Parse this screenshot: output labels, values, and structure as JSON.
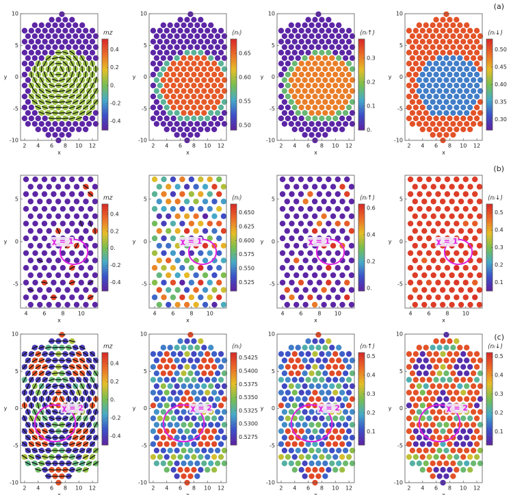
{
  "panel_labels": [
    "(a)",
    "(b)",
    "(c)"
  ],
  "chart_data": [
    {
      "type": "scatter",
      "x_label": "x",
      "y_label": "y",
      "xlim": [
        1.4,
        12.8
      ],
      "ylim": [
        -10,
        10
      ],
      "xticks": [
        2,
        4,
        6,
        8,
        10,
        12
      ],
      "yticks": [
        10,
        5,
        0,
        -5,
        -10
      ],
      "colorbar": {
        "label": "mz",
        "lim": [
          -0.5,
          0.52
        ],
        "ticks": [
          0.4,
          0.2,
          {
            "value": 0,
            "label": "0."
          },
          -0.2,
          -0.4
        ]
      }
    },
    {
      "type": "scatter",
      "x_label": "x",
      "y_label": "y",
      "xlim": [
        1.4,
        12.8
      ],
      "ylim": [
        -10,
        10
      ],
      "xticks": [
        2,
        4,
        6,
        8,
        10,
        12
      ],
      "yticks": [
        10,
        5,
        0,
        -5,
        -10
      ],
      "colorbar": {
        "label": "⟨nᵢ⟩",
        "lim": [
          0.49,
          0.68
        ],
        "ticks": [
          0.65,
          {
            "value": 0.6,
            "label": "0.60"
          },
          0.55,
          {
            "value": 0.5,
            "label": "0.50"
          }
        ]
      }
    },
    {
      "type": "scatter",
      "x_label": "x",
      "y_label": "y",
      "xlim": [
        1.4,
        12.8
      ],
      "ylim": [
        -10,
        10
      ],
      "xticks": [
        2,
        4,
        6,
        8,
        10,
        12
      ],
      "yticks": [
        10,
        5,
        0,
        -5,
        -10
      ],
      "colorbar": {
        "label": "⟨nᵢ↑⟩",
        "lim": [
          0,
          0.38
        ],
        "ticks": [
          0.3,
          0.2,
          0.1,
          {
            "value": 0,
            "label": "0."
          }
        ]
      }
    },
    {
      "type": "scatter",
      "x_label": "x",
      "y_label": "y",
      "xlim": [
        1.4,
        12.8
      ],
      "ylim": [
        -10,
        10
      ],
      "xticks": [
        2,
        4,
        6,
        8,
        10,
        12
      ],
      "yticks": [
        10,
        5,
        0,
        -5,
        -10
      ],
      "colorbar": {
        "label": "⟨nᵢ↓⟩",
        "lim": [
          0.27,
          0.53
        ],
        "ticks": [
          {
            "value": 0.5,
            "label": "0.50"
          },
          0.45,
          {
            "value": 0.4,
            "label": "0.40"
          },
          0.35,
          {
            "value": 0.3,
            "label": "0.30"
          }
        ]
      }
    },
    {
      "type": "scatter",
      "x_label": "x",
      "y_label": "y",
      "xlim": [
        3.4,
        11.8
      ],
      "ylim": [
        -7.8,
        7.8
      ],
      "xticks": [
        4,
        6,
        8,
        10
      ],
      "yticks": [
        5,
        0,
        -5
      ],
      "annotation": "χ = 1",
      "colorbar": {
        "label": "mz",
        "lim": [
          -0.5,
          0.52
        ],
        "ticks": [
          0.4,
          0.2,
          {
            "value": 0,
            "label": "0."
          },
          -0.2,
          -0.4
        ]
      }
    },
    {
      "type": "scatter",
      "x_label": "x",
      "y_label": "y",
      "xlim": [
        3.4,
        11.8
      ],
      "ylim": [
        -7.8,
        7.8
      ],
      "xticks": [
        4,
        6,
        8,
        10
      ],
      "yticks": [
        5,
        0,
        -5
      ],
      "annotation": "χ = 1",
      "colorbar": {
        "label": "⟨nᵢ⟩",
        "lim": [
          0.51,
          0.665
        ],
        "ticks": [
          {
            "value": 0.65,
            "label": "0.650"
          },
          0.625,
          {
            "value": 0.6,
            "label": "0.600"
          },
          0.575,
          {
            "value": 0.55,
            "label": "0.550"
          },
          0.525
        ]
      }
    },
    {
      "type": "scatter",
      "x_label": "x",
      "y_label": "y",
      "xlim": [
        3.4,
        11.8
      ],
      "ylim": [
        -7.8,
        7.8
      ],
      "xticks": [
        4,
        6,
        8,
        10
      ],
      "yticks": [
        5,
        0,
        -5
      ],
      "annotation": "χ = 1",
      "colorbar": {
        "label": "⟨nᵢ↑⟩",
        "lim": [
          -0.02,
          0.63
        ],
        "ticks": [
          0.6,
          0.4,
          0.2,
          {
            "value": 0,
            "label": "0."
          }
        ]
      }
    },
    {
      "type": "scatter",
      "x_label": "x",
      "y_label": "y",
      "xlim": [
        3.4,
        11.8
      ],
      "ylim": [
        -7.8,
        7.8
      ],
      "xticks": [
        4,
        6,
        8,
        10
      ],
      "yticks": [
        5,
        0,
        -5
      ],
      "annotation": "χ = 1",
      "colorbar": {
        "label": "⟨nᵢ↓⟩",
        "lim": [
          0.05,
          0.55
        ],
        "ticks": [
          0.5,
          0.4,
          0.3,
          0.2,
          0.1
        ]
      }
    },
    {
      "type": "scatter",
      "x_label": "x",
      "y_label": "y",
      "xlim": [
        1.4,
        12.8
      ],
      "ylim": [
        -10,
        10
      ],
      "xticks": [
        2,
        4,
        6,
        8,
        10,
        12
      ],
      "yticks": [
        10,
        5,
        0,
        -5,
        -10
      ],
      "annotation": "χ = 2",
      "colorbar": {
        "label": "mz",
        "lim": [
          -0.5,
          0.52
        ],
        "ticks": [
          0.4,
          0.2,
          {
            "value": 0,
            "label": "0."
          },
          -0.2,
          -0.4
        ]
      }
    },
    {
      "type": "scatter",
      "x_label": "x",
      "y_label": "y",
      "xlim": [
        1.4,
        12.8
      ],
      "ylim": [
        -10,
        10
      ],
      "xticks": [
        2,
        4,
        6,
        8,
        10,
        12
      ],
      "yticks": [
        10,
        5,
        0,
        -5,
        -10
      ],
      "annotation": "χ = 2",
      "colorbar": {
        "label": "⟨nᵢ⟩",
        "lim": [
          0.526,
          0.5435
        ],
        "ticks": [
          0.5425,
          {
            "value": 0.54,
            "label": "0.5400"
          },
          0.5375,
          {
            "value": 0.535,
            "label": "0.5350"
          },
          0.5325,
          {
            "value": 0.53,
            "label": "0.5300"
          },
          0.5275
        ]
      }
    },
    {
      "type": "scatter",
      "x_label": "x",
      "y_label": "y",
      "xlim": [
        1.4,
        12.8
      ],
      "ylim": [
        -10,
        10
      ],
      "xticks": [
        2,
        4,
        6,
        8,
        10,
        12
      ],
      "yticks": [
        10,
        5,
        0,
        -5,
        -10
      ],
      "annotation": "χ = 2",
      "colorbar": {
        "label": "⟨nᵢ↑⟩",
        "lim": [
          0.03,
          0.52
        ],
        "ticks": [
          0.5,
          0.4,
          0.3,
          0.2,
          0.1
        ]
      }
    },
    {
      "type": "scatter",
      "x_label": "x",
      "y_label": "y",
      "xlim": [
        1.4,
        12.8
      ],
      "ylim": [
        -10,
        10
      ],
      "xticks": [
        2,
        4,
        6,
        8,
        10,
        12
      ],
      "yticks": [
        10,
        5,
        0,
        -5,
        -10
      ],
      "annotation": "χ = 2",
      "colorbar": {
        "label": "⟨nᵢ↓⟩",
        "lim": [
          0.03,
          0.52
        ],
        "ticks": [
          0.5,
          0.4,
          0.3,
          0.2,
          0.1
        ]
      }
    }
  ]
}
